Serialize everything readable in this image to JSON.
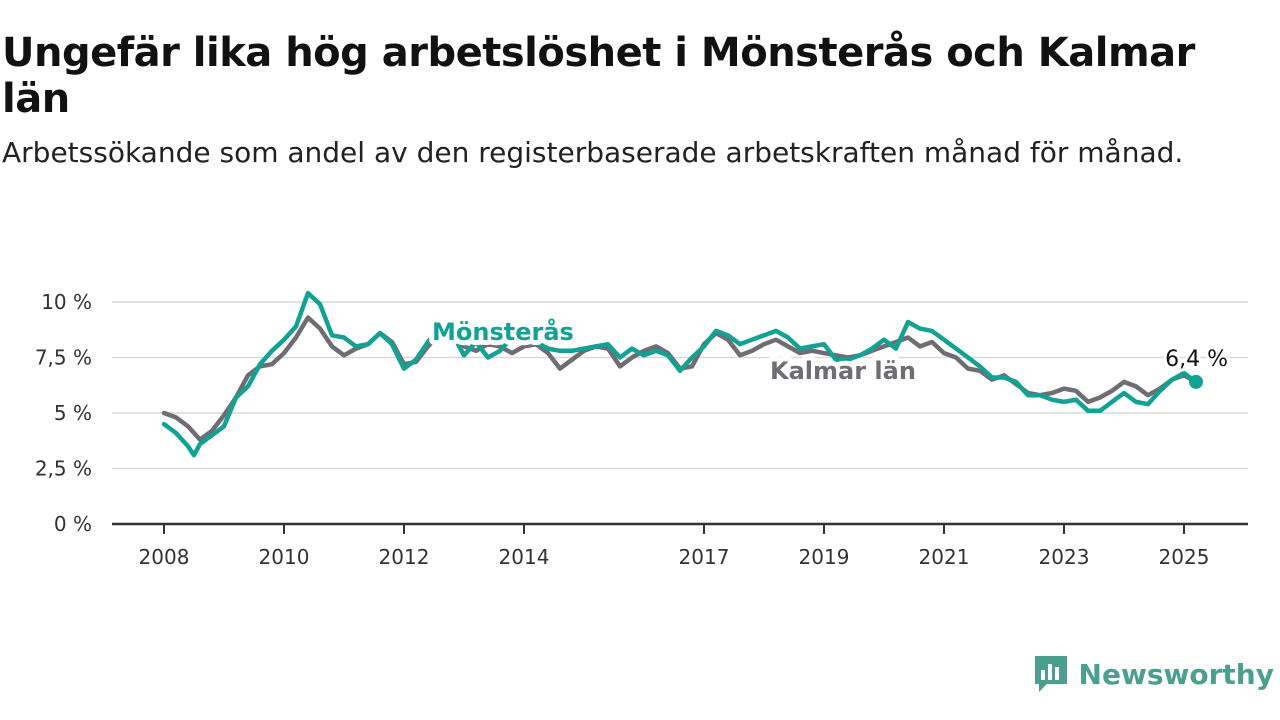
{
  "title": "Ungefär lika hög arbetslöshet i Mönsterås och Kalmar län",
  "subtitle": "Arbetssökande som andel av den registerbaserade arbetskraften månad för månad.",
  "brand": {
    "name": "Newsworthy",
    "icon": "newsworthy-logo-icon"
  },
  "colors": {
    "monsteras": "#12a293",
    "kalmar": "#6f6d73",
    "grid": "#d9d9d9",
    "axis": "#333333"
  },
  "chart_data": {
    "type": "line",
    "ylim": [
      0,
      10.5
    ],
    "xlim": [
      2008.0,
      2026.2
    ],
    "y_ticks": [
      0,
      2.5,
      5,
      7.5,
      10
    ],
    "y_tick_labels": [
      "0 %",
      "2,5 %",
      "5 %",
      "7,5 %",
      "10 %"
    ],
    "x_ticks": [
      2008,
      2010,
      2012,
      2014,
      2017,
      2019,
      2021,
      2023,
      2025
    ],
    "x_tick_labels": [
      "2008",
      "2010",
      "2012",
      "2014",
      "2017",
      "2019",
      "2021",
      "2023",
      "2025"
    ],
    "grid": true,
    "series": [
      {
        "name": "Kalmar län",
        "points": [
          [
            2008.0,
            5.0
          ],
          [
            2008.2,
            4.8
          ],
          [
            2008.4,
            4.4
          ],
          [
            2008.6,
            3.8
          ],
          [
            2008.8,
            4.2
          ],
          [
            2009.0,
            4.9
          ],
          [
            2009.2,
            5.7
          ],
          [
            2009.4,
            6.7
          ],
          [
            2009.6,
            7.1
          ],
          [
            2009.8,
            7.2
          ],
          [
            2010.0,
            7.7
          ],
          [
            2010.2,
            8.4
          ],
          [
            2010.4,
            9.3
          ],
          [
            2010.6,
            8.8
          ],
          [
            2010.8,
            8.0
          ],
          [
            2011.0,
            7.6
          ],
          [
            2011.2,
            7.9
          ],
          [
            2011.4,
            8.1
          ],
          [
            2011.6,
            8.6
          ],
          [
            2011.8,
            8.2
          ],
          [
            2012.0,
            7.2
          ],
          [
            2012.2,
            7.3
          ],
          [
            2012.4,
            8.0
          ],
          [
            2012.6,
            8.6
          ],
          [
            2012.8,
            8.8
          ],
          [
            2013.0,
            8.0
          ],
          [
            2013.2,
            7.8
          ],
          [
            2013.4,
            8.1
          ],
          [
            2013.6,
            8.0
          ],
          [
            2013.8,
            7.7
          ],
          [
            2014.0,
            8.0
          ],
          [
            2014.2,
            8.1
          ],
          [
            2014.4,
            7.7
          ],
          [
            2014.6,
            7.0
          ],
          [
            2014.8,
            7.4
          ],
          [
            2015.0,
            7.8
          ],
          [
            2015.2,
            8.0
          ],
          [
            2015.4,
            7.9
          ],
          [
            2015.6,
            7.1
          ],
          [
            2015.8,
            7.5
          ],
          [
            2016.0,
            7.8
          ],
          [
            2016.2,
            8.0
          ],
          [
            2016.4,
            7.7
          ],
          [
            2016.6,
            7.0
          ],
          [
            2016.8,
            7.1
          ],
          [
            2017.0,
            8.1
          ],
          [
            2017.2,
            8.6
          ],
          [
            2017.4,
            8.3
          ],
          [
            2017.6,
            7.6
          ],
          [
            2017.8,
            7.8
          ],
          [
            2018.0,
            8.1
          ],
          [
            2018.2,
            8.3
          ],
          [
            2018.4,
            8.0
          ],
          [
            2018.6,
            7.7
          ],
          [
            2018.8,
            7.8
          ],
          [
            2019.0,
            7.7
          ],
          [
            2019.2,
            7.6
          ],
          [
            2019.4,
            7.5
          ],
          [
            2019.6,
            7.6
          ],
          [
            2019.8,
            7.8
          ],
          [
            2020.0,
            8.0
          ],
          [
            2020.2,
            8.2
          ],
          [
            2020.4,
            8.4
          ],
          [
            2020.6,
            8.0
          ],
          [
            2020.8,
            8.2
          ],
          [
            2021.0,
            7.7
          ],
          [
            2021.2,
            7.5
          ],
          [
            2021.4,
            7.0
          ],
          [
            2021.6,
            6.9
          ],
          [
            2021.8,
            6.5
          ],
          [
            2022.0,
            6.7
          ],
          [
            2022.2,
            6.3
          ],
          [
            2022.4,
            5.9
          ],
          [
            2022.6,
            5.8
          ],
          [
            2022.8,
            5.9
          ],
          [
            2023.0,
            6.1
          ],
          [
            2023.2,
            6.0
          ],
          [
            2023.4,
            5.5
          ],
          [
            2023.6,
            5.7
          ],
          [
            2023.8,
            6.0
          ],
          [
            2024.0,
            6.4
          ],
          [
            2024.2,
            6.2
          ],
          [
            2024.4,
            5.8
          ],
          [
            2024.6,
            6.1
          ],
          [
            2024.8,
            6.5
          ],
          [
            2025.0,
            6.7
          ],
          [
            2025.2,
            6.4
          ]
        ]
      },
      {
        "name": "Mönsterås",
        "points": [
          [
            2008.0,
            4.5
          ],
          [
            2008.2,
            4.1
          ],
          [
            2008.3,
            3.8
          ],
          [
            2008.4,
            3.5
          ],
          [
            2008.5,
            3.1
          ],
          [
            2008.6,
            3.6
          ],
          [
            2008.8,
            4.0
          ],
          [
            2009.0,
            4.4
          ],
          [
            2009.2,
            5.7
          ],
          [
            2009.4,
            6.2
          ],
          [
            2009.6,
            7.2
          ],
          [
            2009.8,
            7.8
          ],
          [
            2010.0,
            8.3
          ],
          [
            2010.2,
            8.9
          ],
          [
            2010.4,
            10.4
          ],
          [
            2010.6,
            9.9
          ],
          [
            2010.8,
            8.5
          ],
          [
            2011.0,
            8.4
          ],
          [
            2011.2,
            8.0
          ],
          [
            2011.4,
            8.1
          ],
          [
            2011.6,
            8.6
          ],
          [
            2011.8,
            8.1
          ],
          [
            2012.0,
            7.0
          ],
          [
            2012.2,
            7.4
          ],
          [
            2012.4,
            8.2
          ],
          [
            2012.6,
            8.9
          ],
          [
            2012.8,
            8.6
          ],
          [
            2013.0,
            7.6
          ],
          [
            2013.2,
            8.2
          ],
          [
            2013.4,
            7.5
          ],
          [
            2013.6,
            7.8
          ],
          [
            2013.8,
            8.4
          ],
          [
            2014.0,
            8.3
          ],
          [
            2014.2,
            8.2
          ],
          [
            2014.4,
            7.9
          ],
          [
            2014.6,
            7.8
          ],
          [
            2014.8,
            7.8
          ],
          [
            2015.0,
            7.9
          ],
          [
            2015.2,
            8.0
          ],
          [
            2015.4,
            8.1
          ],
          [
            2015.6,
            7.5
          ],
          [
            2015.8,
            7.9
          ],
          [
            2016.0,
            7.6
          ],
          [
            2016.2,
            7.8
          ],
          [
            2016.4,
            7.6
          ],
          [
            2016.6,
            6.9
          ],
          [
            2016.8,
            7.5
          ],
          [
            2017.0,
            8.0
          ],
          [
            2017.2,
            8.7
          ],
          [
            2017.4,
            8.5
          ],
          [
            2017.6,
            8.1
          ],
          [
            2017.8,
            8.3
          ],
          [
            2018.0,
            8.5
          ],
          [
            2018.2,
            8.7
          ],
          [
            2018.4,
            8.4
          ],
          [
            2018.6,
            7.9
          ],
          [
            2018.8,
            8.0
          ],
          [
            2019.0,
            8.1
          ],
          [
            2019.2,
            7.4
          ],
          [
            2019.4,
            7.4
          ],
          [
            2019.6,
            7.6
          ],
          [
            2019.8,
            7.9
          ],
          [
            2020.0,
            8.3
          ],
          [
            2020.2,
            7.9
          ],
          [
            2020.4,
            9.1
          ],
          [
            2020.6,
            8.8
          ],
          [
            2020.8,
            8.7
          ],
          [
            2021.0,
            8.3
          ],
          [
            2021.2,
            7.9
          ],
          [
            2021.4,
            7.5
          ],
          [
            2021.6,
            7.1
          ],
          [
            2021.8,
            6.6
          ],
          [
            2022.0,
            6.6
          ],
          [
            2022.2,
            6.4
          ],
          [
            2022.4,
            5.8
          ],
          [
            2022.6,
            5.8
          ],
          [
            2022.8,
            5.6
          ],
          [
            2023.0,
            5.5
          ],
          [
            2023.2,
            5.6
          ],
          [
            2023.4,
            5.1
          ],
          [
            2023.6,
            5.1
          ],
          [
            2023.8,
            5.5
          ],
          [
            2024.0,
            5.9
          ],
          [
            2024.2,
            5.5
          ],
          [
            2024.4,
            5.4
          ],
          [
            2024.6,
            6.0
          ],
          [
            2024.8,
            6.5
          ],
          [
            2025.0,
            6.8
          ],
          [
            2025.2,
            6.4
          ]
        ]
      }
    ],
    "labels": {
      "monsteras": "Mönsterås",
      "kalmar": "Kalmar län",
      "end_value": "6,4 %"
    }
  }
}
